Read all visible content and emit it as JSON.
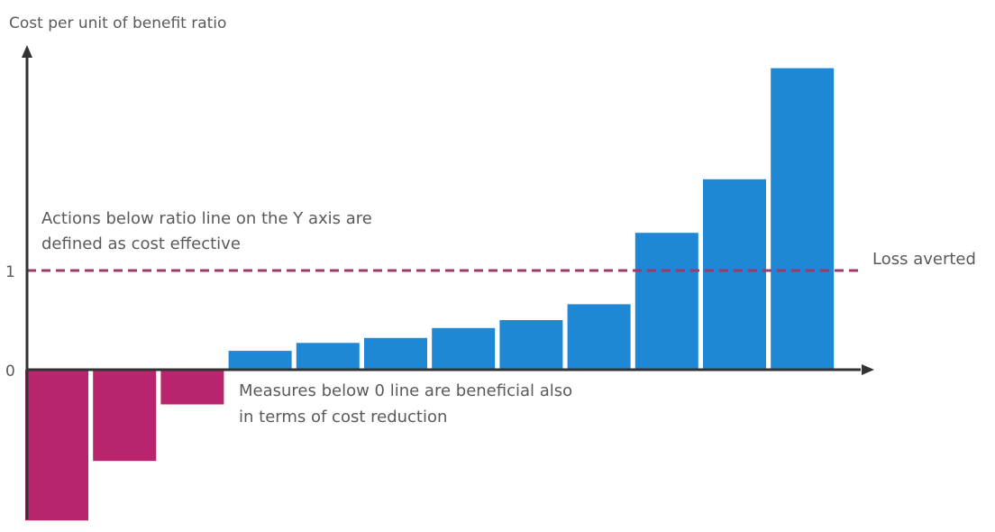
{
  "chart_data": {
    "type": "bar",
    "ylabel": "Cost per unit of benefit ratio",
    "yticks": [
      "0",
      "1"
    ],
    "reference_line": {
      "value": 1,
      "label": "Loss averted",
      "color": "#9c3a6b",
      "style": "dashed"
    },
    "annotations": {
      "above_line": [
        "Actions below ratio line on the Y axis are",
        "defined as cost effective"
      ],
      "below_zero": [
        "Measures below 0 line are beneficial also",
        "in terms of cost reduction"
      ]
    },
    "values": [
      -1.52,
      -0.92,
      -0.35,
      0.19,
      0.27,
      0.32,
      0.42,
      0.5,
      0.66,
      1.38,
      1.92,
      3.04
    ],
    "colors": {
      "positive": "#1e88d4",
      "negative": "#b8246e",
      "axis": "#333333"
    },
    "ylim": [
      -1.55,
      3.3
    ],
    "grid": false
  }
}
